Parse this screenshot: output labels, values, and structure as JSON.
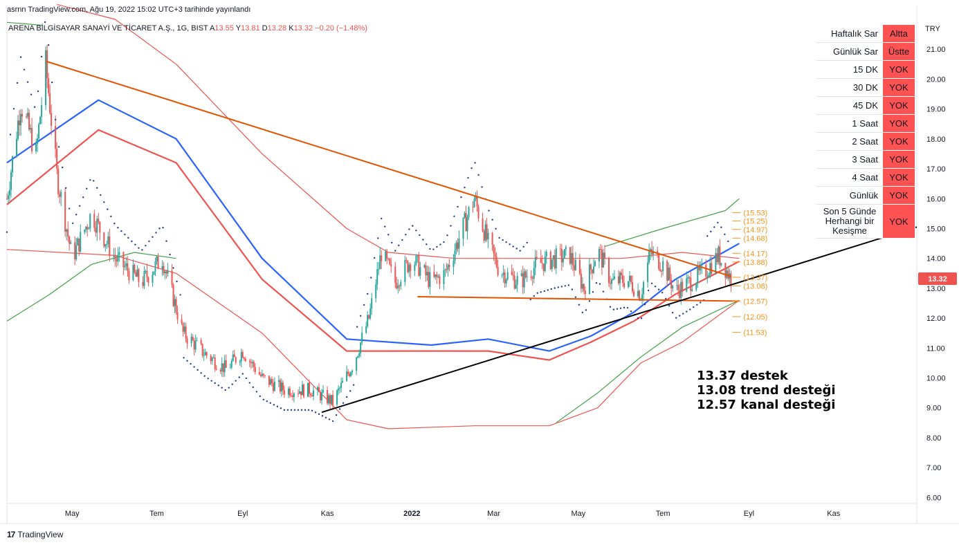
{
  "header": {
    "published": "asrnn TradingView.com, Ağu 19, 2022 15:02 UTC+3 tarihinde yayınlandı"
  },
  "legend": {
    "symbol": "ARENA BİLGİSAYAR SANAYİ VE TİCARET A.Ş., 1G, BIST",
    "open_label": "A",
    "open": "13.55",
    "high_label": "Y",
    "high": "13.81",
    "low_label": "D",
    "low": "13.28",
    "close_label": "K",
    "close": "13.32",
    "change": "−0.20 (−1.48%)"
  },
  "signal_table": {
    "rows": [
      {
        "label": "Haftalık Sar",
        "status": "Altta"
      },
      {
        "label": "Günlük Sar",
        "status": "Üstte"
      },
      {
        "label": "15 DK",
        "status": "YOK"
      },
      {
        "label": "30 DK",
        "status": "YOK"
      },
      {
        "label": "45 DK",
        "status": "YOK"
      },
      {
        "label": "1 Saat",
        "status": "YOK"
      },
      {
        "label": "2 Saat",
        "status": "YOK"
      },
      {
        "label": "3 Saat",
        "status": "YOK"
      },
      {
        "label": "4 Saat",
        "status": "YOK"
      },
      {
        "label": "Günlük",
        "status": "YOK"
      },
      {
        "label": "Son 5 Günde Herhangi bir Kesişme",
        "status": "YOK"
      }
    ],
    "status_color": "#ff5252"
  },
  "annotation": {
    "line1": "13.37 destek",
    "line2": "13.08 trend desteği",
    "line3": "12.57 kanal desteği"
  },
  "footer": {
    "brand": "TradingView",
    "logo_text": "17"
  },
  "chart_data": {
    "type": "candlestick",
    "currency": "TRY",
    "last_price": 13.32,
    "last_price_label": "13.32",
    "ylim": [
      5.8,
      22.0
    ],
    "y_ticks": [
      "6.00",
      "7.00",
      "8.00",
      "9.00",
      "10.00",
      "11.00",
      "12.00",
      "13.00",
      "14.00",
      "15.00",
      "16.00",
      "17.00",
      "18.00",
      "19.00",
      "20.00",
      "21.00"
    ],
    "x_ticks": [
      "May",
      "Tem",
      "Eyl",
      "Kas",
      "2022",
      "Mar",
      "May",
      "Tem",
      "Eyl",
      "Kas"
    ],
    "x_range": [
      "2021-03-15",
      "2022-12-31"
    ],
    "price_path": [
      [
        "2021-03-15",
        16.0
      ],
      [
        "2021-03-25",
        19.2
      ],
      [
        "2021-04-05",
        17.5
      ],
      [
        "2021-04-12",
        20.5
      ],
      [
        "2021-04-20",
        16.8
      ],
      [
        "2021-05-01",
        14.0
      ],
      [
        "2021-05-15",
        15.5
      ],
      [
        "2021-06-01",
        14.0
      ],
      [
        "2021-06-20",
        13.2
      ],
      [
        "2021-07-05",
        14.0
      ],
      [
        "2021-07-20",
        11.5
      ],
      [
        "2021-08-05",
        10.8
      ],
      [
        "2021-08-20",
        10.3
      ],
      [
        "2021-09-01",
        10.9
      ],
      [
        "2021-09-15",
        10.0
      ],
      [
        "2021-10-01",
        9.6
      ],
      [
        "2021-10-20",
        9.6
      ],
      [
        "2021-11-05",
        9.2
      ],
      [
        "2021-11-20",
        10.5
      ],
      [
        "2021-12-01",
        12.0
      ],
      [
        "2021-12-10",
        14.2
      ],
      [
        "2021-12-20",
        13.2
      ],
      [
        "2022-01-01",
        14.0
      ],
      [
        "2022-01-15",
        13.2
      ],
      [
        "2022-01-25",
        13.5
      ],
      [
        "2022-02-05",
        14.8
      ],
      [
        "2022-02-15",
        16.0
      ],
      [
        "2022-02-25",
        14.5
      ],
      [
        "2022-03-05",
        13.6
      ],
      [
        "2022-03-20",
        13.2
      ],
      [
        "2022-04-01",
        13.8
      ],
      [
        "2022-04-15",
        14.0
      ],
      [
        "2022-04-25",
        14.1
      ],
      [
        "2022-05-05",
        13.0
      ],
      [
        "2022-05-15",
        14.3
      ],
      [
        "2022-05-25",
        13.2
      ],
      [
        "2022-06-05",
        13.3
      ],
      [
        "2022-06-15",
        12.8
      ],
      [
        "2022-06-22",
        14.2
      ],
      [
        "2022-07-01",
        13.8
      ],
      [
        "2022-07-10",
        12.9
      ],
      [
        "2022-07-20",
        13.2
      ],
      [
        "2022-08-01",
        13.6
      ],
      [
        "2022-08-10",
        14.1
      ],
      [
        "2022-08-19",
        13.32
      ]
    ],
    "sar_levels": [
      15.53,
      15.25,
      14.97,
      14.68,
      14.17,
      13.88,
      13.37,
      13.08,
      12.57,
      12.05,
      11.53
    ],
    "level_labels": [
      "(15.53)",
      "(15.25)",
      "(14.97)",
      "(14.68)",
      "(14.17)",
      "(13.88)",
      "(13.37)",
      "(13.08)",
      "(12.57)",
      "(12.05)",
      "(11.53)"
    ],
    "trendlines": [
      {
        "name": "descending resistance",
        "from": [
          "2021-04-12",
          20.6
        ],
        "to": [
          "2022-08-19",
          13.4
        ],
        "color": "#e65100"
      },
      {
        "name": "channel support",
        "from": [
          "2022-01-05",
          12.72
        ],
        "to": [
          "2022-08-25",
          12.57
        ],
        "color": "#e65100"
      },
      {
        "name": "rising trend support",
        "from": [
          "2021-10-28",
          8.85
        ],
        "to": [
          "2022-12-31",
          15.05
        ],
        "color": "#000000"
      }
    ],
    "moving_averages": [
      {
        "color": "#2962ff",
        "points": [
          [
            "2021-03-15",
            17.2
          ],
          [
            "2021-05-20",
            19.3
          ],
          [
            "2021-07-15",
            18.0
          ],
          [
            "2021-09-15",
            14.0
          ],
          [
            "2021-11-15",
            11.3
          ],
          [
            "2022-01-15",
            11.1
          ],
          [
            "2022-02-25",
            11.3
          ],
          [
            "2022-04-10",
            10.9
          ],
          [
            "2022-05-10",
            11.4
          ],
          [
            "2022-06-10",
            12.2
          ],
          [
            "2022-07-10",
            13.3
          ],
          [
            "2022-08-25",
            14.5
          ]
        ]
      },
      {
        "color": "#ef5350",
        "points": [
          [
            "2021-03-15",
            15.8
          ],
          [
            "2021-05-20",
            18.3
          ],
          [
            "2021-07-15",
            17.2
          ],
          [
            "2021-09-15",
            13.3
          ],
          [
            "2021-11-15",
            10.9
          ],
          [
            "2022-01-15",
            10.9
          ],
          [
            "2022-02-25",
            10.9
          ],
          [
            "2022-04-10",
            10.6
          ],
          [
            "2022-05-10",
            11.2
          ],
          [
            "2022-06-10",
            11.9
          ],
          [
            "2022-07-10",
            12.8
          ],
          [
            "2022-08-25",
            13.9
          ]
        ]
      }
    ],
    "bands": [
      {
        "color": "#ef5350",
        "points": [
          [
            "2021-04-20",
            22.5
          ],
          [
            "2021-06-01",
            22.0
          ],
          [
            "2021-07-15",
            20.5
          ],
          [
            "2021-09-15",
            17.5
          ],
          [
            "2021-11-15",
            15.0
          ],
          [
            "2021-12-15",
            14.2
          ],
          [
            "2022-02-01",
            14.0
          ],
          [
            "2022-04-01",
            14.0
          ],
          [
            "2022-06-01",
            14.0
          ],
          [
            "2022-07-15",
            14.2
          ],
          [
            "2022-08-25",
            14.0
          ]
        ]
      },
      {
        "color": "#ef5350",
        "points": [
          [
            "2021-03-15",
            14.3
          ],
          [
            "2021-06-01",
            14.1
          ],
          [
            "2021-07-15",
            13.5
          ],
          [
            "2021-09-15",
            11.5
          ],
          [
            "2021-11-15",
            8.6
          ],
          [
            "2021-12-15",
            8.3
          ],
          [
            "2022-02-15",
            8.4
          ],
          [
            "2022-04-10",
            8.4
          ],
          [
            "2022-05-15",
            9.0
          ],
          [
            "2022-06-15",
            10.5
          ],
          [
            "2022-07-15",
            11.2
          ],
          [
            "2022-08-25",
            12.6
          ]
        ]
      },
      {
        "color": "#43a047",
        "points": [
          [
            "2021-03-15",
            21.9
          ],
          [
            "2021-04-10",
            21.8
          ]
        ]
      },
      {
        "color": "#43a047",
        "points": [
          [
            "2022-05-20",
            14.4
          ],
          [
            "2022-07-01",
            15.0
          ],
          [
            "2022-08-15",
            15.6
          ],
          [
            "2022-08-25",
            16.0
          ]
        ]
      },
      {
        "color": "#43a047",
        "points": [
          [
            "2021-03-15",
            11.9
          ],
          [
            "2021-04-15",
            12.8
          ],
          [
            "2021-05-15",
            13.8
          ],
          [
            "2021-06-15",
            14.2
          ],
          [
            "2021-07-15",
            14.0
          ]
        ]
      },
      {
        "color": "#43a047",
        "points": [
          [
            "2022-04-15",
            8.5
          ],
          [
            "2022-05-15",
            9.5
          ],
          [
            "2022-06-15",
            10.7
          ],
          [
            "2022-07-15",
            11.7
          ],
          [
            "2022-08-25",
            12.6
          ]
        ]
      }
    ]
  }
}
